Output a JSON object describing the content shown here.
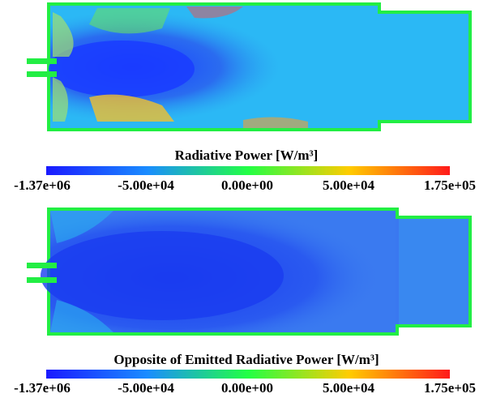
{
  "panels": [
    {
      "colorbar": {
        "title": "Radiative Power [W/m³]",
        "ticks": [
          "-1.37e+06",
          "-5.00e+04",
          "0.00e+00",
          "5.00e+04",
          "1.75e+05"
        ]
      }
    },
    {
      "colorbar": {
        "title": "Opposite of Emitted Radiative Power [W/m³]",
        "ticks": [
          "-1.37e+06",
          "-5.00e+04",
          "0.00e+00",
          "5.00e+04",
          "1.75e+05"
        ]
      }
    }
  ]
}
